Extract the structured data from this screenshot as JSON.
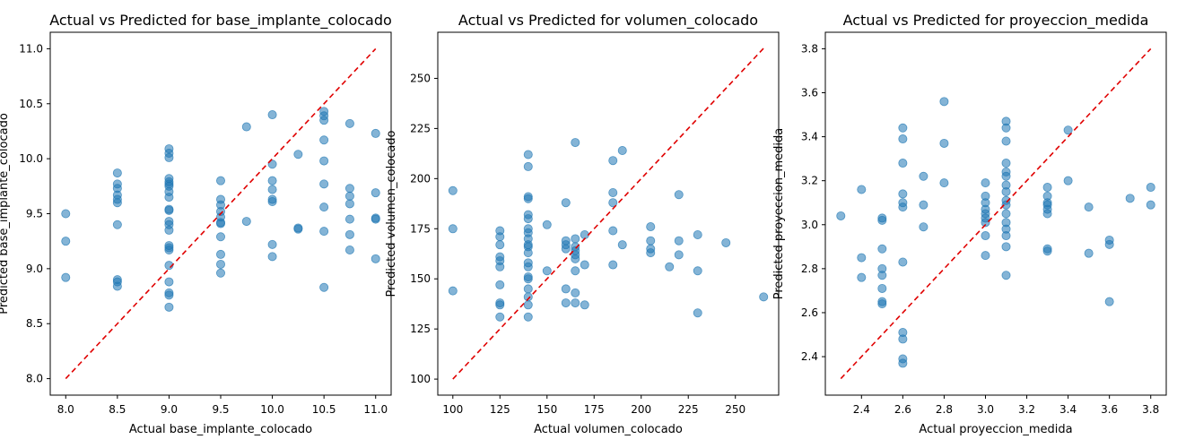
{
  "chart_data": [
    {
      "type": "scatter",
      "title": "Actual vs Predicted for base_implante_colocado",
      "xlabel": "Actual base_implante_colocado",
      "ylabel": "Predicted base_implante_colocado",
      "xlim": [
        7.85,
        11.15
      ],
      "ylim": [
        7.85,
        11.15
      ],
      "xticks": [
        8.0,
        8.5,
        9.0,
        9.5,
        10.0,
        10.5,
        11.0
      ],
      "yticks": [
        8.0,
        8.5,
        9.0,
        9.5,
        10.0,
        10.5,
        11.0
      ],
      "tick_decimals": 1,
      "reference_line": [
        [
          8.0,
          8.0
        ],
        [
          11.0,
          11.0
        ]
      ],
      "points": [
        [
          8.0,
          9.5
        ],
        [
          8.0,
          9.25
        ],
        [
          8.0,
          8.92
        ],
        [
          8.5,
          9.87
        ],
        [
          8.5,
          9.77
        ],
        [
          8.5,
          9.73
        ],
        [
          8.5,
          9.67
        ],
        [
          8.5,
          9.63
        ],
        [
          8.5,
          9.6
        ],
        [
          8.5,
          9.4
        ],
        [
          8.5,
          8.9
        ],
        [
          8.5,
          8.88
        ],
        [
          8.5,
          8.84
        ],
        [
          9.0,
          10.09
        ],
        [
          9.0,
          10.05
        ],
        [
          9.0,
          10.01
        ],
        [
          9.0,
          9.82
        ],
        [
          9.0,
          9.79
        ],
        [
          9.0,
          9.77
        ],
        [
          9.0,
          9.75
        ],
        [
          9.0,
          9.7
        ],
        [
          9.0,
          9.65
        ],
        [
          9.0,
          9.54
        ],
        [
          9.0,
          9.53
        ],
        [
          9.0,
          9.43
        ],
        [
          9.0,
          9.4
        ],
        [
          9.0,
          9.35
        ],
        [
          9.0,
          9.21
        ],
        [
          9.0,
          9.19
        ],
        [
          9.0,
          9.17
        ],
        [
          9.0,
          9.03
        ],
        [
          9.0,
          8.88
        ],
        [
          9.0,
          8.78
        ],
        [
          9.0,
          8.76
        ],
        [
          9.0,
          8.65
        ],
        [
          9.5,
          9.8
        ],
        [
          9.5,
          9.63
        ],
        [
          9.5,
          9.58
        ],
        [
          9.5,
          9.52
        ],
        [
          9.5,
          9.47
        ],
        [
          9.5,
          9.42
        ],
        [
          9.5,
          9.41
        ],
        [
          9.5,
          9.29
        ],
        [
          9.5,
          9.13
        ],
        [
          9.5,
          9.04
        ],
        [
          9.5,
          8.96
        ],
        [
          9.75,
          10.29
        ],
        [
          9.75,
          9.43
        ],
        [
          10.0,
          10.4
        ],
        [
          10.0,
          9.95
        ],
        [
          10.0,
          9.8
        ],
        [
          10.0,
          9.72
        ],
        [
          10.0,
          9.63
        ],
        [
          10.0,
          9.61
        ],
        [
          10.0,
          9.22
        ],
        [
          10.0,
          9.11
        ],
        [
          10.25,
          10.04
        ],
        [
          10.25,
          9.37
        ],
        [
          10.25,
          9.36
        ],
        [
          10.5,
          10.43
        ],
        [
          10.5,
          10.39
        ],
        [
          10.5,
          10.35
        ],
        [
          10.5,
          10.17
        ],
        [
          10.5,
          9.98
        ],
        [
          10.5,
          9.77
        ],
        [
          10.5,
          9.56
        ],
        [
          10.5,
          9.34
        ],
        [
          10.5,
          8.83
        ],
        [
          10.75,
          10.32
        ],
        [
          10.75,
          9.73
        ],
        [
          10.75,
          9.66
        ],
        [
          10.75,
          9.59
        ],
        [
          10.75,
          9.45
        ],
        [
          10.75,
          9.31
        ],
        [
          10.75,
          9.17
        ],
        [
          11.0,
          10.23
        ],
        [
          11.0,
          9.69
        ],
        [
          11.0,
          9.46
        ],
        [
          11.0,
          9.45
        ],
        [
          11.0,
          9.09
        ]
      ]
    },
    {
      "type": "scatter",
      "title": "Actual vs Predicted for volumen_colocado",
      "xlabel": "Actual volumen_colocado",
      "ylabel": "Predicted volumen_colocado",
      "xlim": [
        92,
        273
      ],
      "ylim": [
        92,
        273
      ],
      "xticks": [
        100,
        125,
        150,
        175,
        200,
        225,
        250
      ],
      "yticks": [
        100,
        125,
        150,
        175,
        200,
        225,
        250
      ],
      "tick_decimals": 0,
      "reference_line": [
        [
          100,
          100
        ],
        [
          265,
          265
        ]
      ],
      "points": [
        [
          100,
          194
        ],
        [
          100,
          175
        ],
        [
          100,
          144
        ],
        [
          125,
          174
        ],
        [
          125,
          171
        ],
        [
          125,
          167
        ],
        [
          125,
          161
        ],
        [
          125,
          159
        ],
        [
          125,
          156
        ],
        [
          125,
          147
        ],
        [
          125,
          138
        ],
        [
          125,
          137
        ],
        [
          125,
          131
        ],
        [
          140,
          212
        ],
        [
          140,
          206
        ],
        [
          140,
          191
        ],
        [
          140,
          190
        ],
        [
          140,
          182
        ],
        [
          140,
          180
        ],
        [
          140,
          175
        ],
        [
          140,
          173
        ],
        [
          140,
          170
        ],
        [
          140,
          167
        ],
        [
          140,
          166
        ],
        [
          140,
          163
        ],
        [
          140,
          158
        ],
        [
          140,
          156
        ],
        [
          140,
          151
        ],
        [
          140,
          150
        ],
        [
          140,
          145
        ],
        [
          140,
          141
        ],
        [
          140,
          137
        ],
        [
          140,
          131
        ],
        [
          150,
          177
        ],
        [
          150,
          154
        ],
        [
          160,
          188
        ],
        [
          160,
          169
        ],
        [
          160,
          167
        ],
        [
          160,
          165
        ],
        [
          160,
          145
        ],
        [
          160,
          138
        ],
        [
          165,
          218
        ],
        [
          165,
          170
        ],
        [
          165,
          166
        ],
        [
          165,
          164
        ],
        [
          165,
          162
        ],
        [
          165,
          160
        ],
        [
          165,
          154
        ],
        [
          165,
          143
        ],
        [
          165,
          138
        ],
        [
          170,
          172
        ],
        [
          170,
          157
        ],
        [
          170,
          137
        ],
        [
          185,
          209
        ],
        [
          185,
          193
        ],
        [
          185,
          188
        ],
        [
          185,
          174
        ],
        [
          185,
          157
        ],
        [
          190,
          214
        ],
        [
          190,
          167
        ],
        [
          205,
          176
        ],
        [
          205,
          169
        ],
        [
          205,
          165
        ],
        [
          205,
          163
        ],
        [
          215,
          156
        ],
        [
          220,
          192
        ],
        [
          220,
          169
        ],
        [
          220,
          162
        ],
        [
          230,
          172
        ],
        [
          230,
          154
        ],
        [
          230,
          133
        ],
        [
          245,
          168
        ],
        [
          265,
          141
        ]
      ]
    },
    {
      "type": "scatter",
      "title": "Actual vs Predicted for proyeccion_medida",
      "xlabel": "Actual proyeccion_medida",
      "ylabel": "Predicted proyeccion_medida",
      "xlim": [
        2.225,
        3.875
      ],
      "ylim": [
        2.225,
        3.875
      ],
      "xticks": [
        2.4,
        2.6,
        2.8,
        3.0,
        3.2,
        3.4,
        3.6,
        3.8
      ],
      "yticks": [
        2.4,
        2.6,
        2.8,
        3.0,
        3.2,
        3.4,
        3.6,
        3.8
      ],
      "tick_decimals": 1,
      "reference_line": [
        [
          2.3,
          2.3
        ],
        [
          3.8,
          3.8
        ]
      ],
      "points": [
        [
          2.3,
          3.04
        ],
        [
          2.4,
          3.16
        ],
        [
          2.4,
          2.85
        ],
        [
          2.4,
          2.76
        ],
        [
          2.5,
          3.03
        ],
        [
          2.5,
          3.02
        ],
        [
          2.5,
          2.89
        ],
        [
          2.5,
          2.8
        ],
        [
          2.5,
          2.77
        ],
        [
          2.5,
          2.71
        ],
        [
          2.5,
          2.65
        ],
        [
          2.5,
          2.64
        ],
        [
          2.6,
          3.44
        ],
        [
          2.6,
          3.39
        ],
        [
          2.6,
          3.28
        ],
        [
          2.6,
          3.14
        ],
        [
          2.6,
          3.1
        ],
        [
          2.6,
          3.08
        ],
        [
          2.6,
          2.83
        ],
        [
          2.6,
          2.51
        ],
        [
          2.6,
          2.48
        ],
        [
          2.6,
          2.39
        ],
        [
          2.6,
          2.37
        ],
        [
          2.7,
          3.22
        ],
        [
          2.7,
          3.09
        ],
        [
          2.7,
          2.99
        ],
        [
          2.8,
          3.56
        ],
        [
          2.8,
          3.37
        ],
        [
          2.8,
          3.19
        ],
        [
          3.0,
          3.19
        ],
        [
          3.0,
          3.13
        ],
        [
          3.0,
          3.1
        ],
        [
          3.0,
          3.07
        ],
        [
          3.0,
          3.05
        ],
        [
          3.0,
          3.03
        ],
        [
          3.0,
          3.01
        ],
        [
          3.0,
          2.95
        ],
        [
          3.0,
          2.86
        ],
        [
          3.1,
          3.47
        ],
        [
          3.1,
          3.44
        ],
        [
          3.1,
          3.38
        ],
        [
          3.1,
          3.28
        ],
        [
          3.1,
          3.24
        ],
        [
          3.1,
          3.22
        ],
        [
          3.1,
          3.18
        ],
        [
          3.1,
          3.15
        ],
        [
          3.1,
          3.11
        ],
        [
          3.1,
          3.09
        ],
        [
          3.1,
          3.05
        ],
        [
          3.1,
          3.01
        ],
        [
          3.1,
          2.98
        ],
        [
          3.1,
          2.95
        ],
        [
          3.1,
          2.9
        ],
        [
          3.1,
          2.77
        ],
        [
          3.3,
          3.17
        ],
        [
          3.3,
          3.13
        ],
        [
          3.3,
          3.1
        ],
        [
          3.3,
          3.09
        ],
        [
          3.3,
          3.07
        ],
        [
          3.3,
          3.05
        ],
        [
          3.3,
          2.89
        ],
        [
          3.3,
          2.88
        ],
        [
          3.4,
          3.43
        ],
        [
          3.4,
          3.2
        ],
        [
          3.5,
          3.08
        ],
        [
          3.5,
          2.87
        ],
        [
          3.6,
          2.93
        ],
        [
          3.6,
          2.91
        ],
        [
          3.6,
          2.65
        ],
        [
          3.7,
          3.12
        ],
        [
          3.8,
          3.17
        ],
        [
          3.8,
          3.09
        ]
      ]
    }
  ]
}
